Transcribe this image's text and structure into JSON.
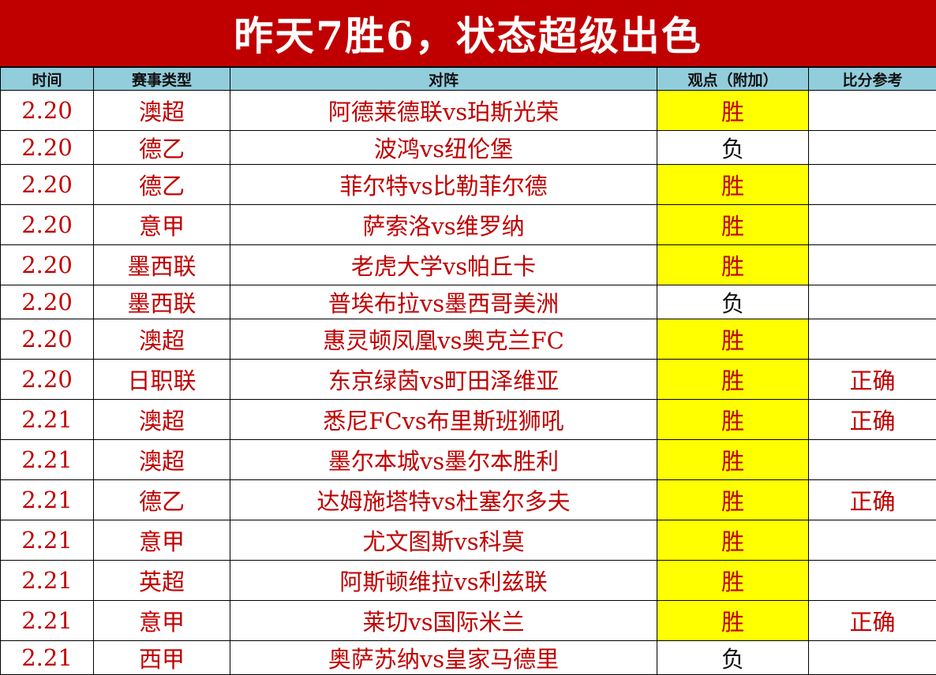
{
  "title": "昨天7胜6，状态超级出色",
  "columns": [
    "时间",
    "赛事类型",
    "对阵",
    "观点（附加）",
    "比分参考"
  ],
  "colors": {
    "title_bg": "#c00000",
    "header_bg": "#92cddc",
    "win_highlight": "#ffff00",
    "text_red": "#c00000"
  },
  "rows": [
    {
      "date": "2.20",
      "league": "澳超",
      "match": "阿德莱德联vs珀斯光荣",
      "pick": "胜",
      "score": ""
    },
    {
      "date": "2.20",
      "league": "德乙",
      "match": "波鸿vs纽伦堡",
      "pick": "负",
      "score": ""
    },
    {
      "date": "2.20",
      "league": "德乙",
      "match": "菲尔特vs比勒菲尔德",
      "pick": "胜",
      "score": ""
    },
    {
      "date": "2.20",
      "league": "意甲",
      "match": "萨索洛vs维罗纳",
      "pick": "胜",
      "score": ""
    },
    {
      "date": "2.20",
      "league": "墨西联",
      "match": "老虎大学vs帕丘卡",
      "pick": "胜",
      "score": ""
    },
    {
      "date": "2.20",
      "league": "墨西联",
      "match": "普埃布拉vs墨西哥美洲",
      "pick": "负",
      "score": ""
    },
    {
      "date": "2.20",
      "league": "澳超",
      "match": "惠灵顿凤凰vs奥克兰FC",
      "pick": "胜",
      "score": ""
    },
    {
      "date": "2.20",
      "league": "日职联",
      "match": "东京绿茵vs町田泽维亚",
      "pick": "胜",
      "score": "正确"
    },
    {
      "date": "2.21",
      "league": "澳超",
      "match": "悉尼FCvs布里斯班狮吼",
      "pick": "胜",
      "score": "正确"
    },
    {
      "date": "2.21",
      "league": "澳超",
      "match": "墨尔本城vs墨尔本胜利",
      "pick": "胜",
      "score": ""
    },
    {
      "date": "2.21",
      "league": "德乙",
      "match": "达姆施塔特vs杜塞尔多夫",
      "pick": "胜",
      "score": "正确"
    },
    {
      "date": "2.21",
      "league": "意甲",
      "match": "尤文图斯vs科莫",
      "pick": "胜",
      "score": ""
    },
    {
      "date": "2.21",
      "league": "英超",
      "match": "阿斯顿维拉vs利兹联",
      "pick": "胜",
      "score": ""
    },
    {
      "date": "2.21",
      "league": "意甲",
      "match": "莱切vs国际米兰",
      "pick": "胜",
      "score": "正确"
    },
    {
      "date": "2.21",
      "league": "西甲",
      "match": "奥萨苏纳vs皇家马德里",
      "pick": "负",
      "score": ""
    }
  ]
}
